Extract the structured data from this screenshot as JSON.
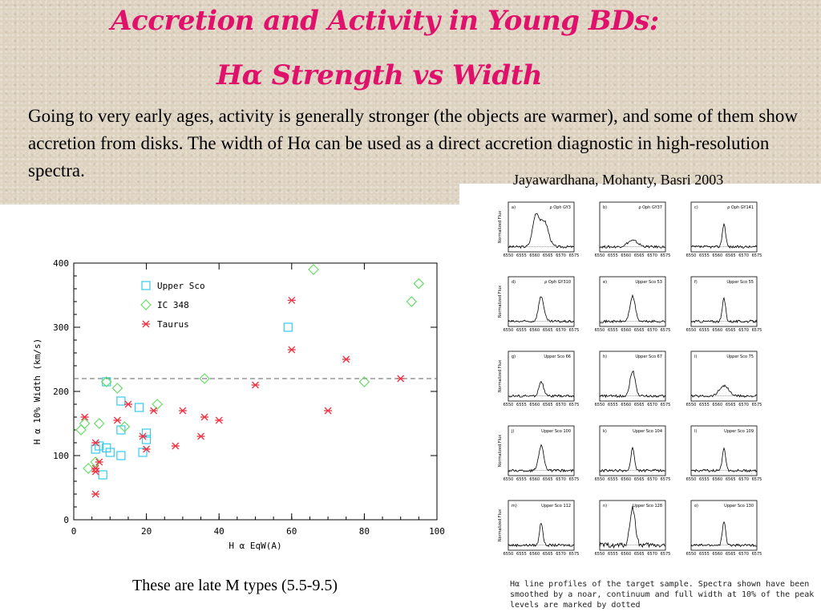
{
  "slide": {
    "title_line1": "Accretion and Activity in Young BDs:",
    "title_line2": "Hα Strength vs Width",
    "intro": "Going to very early ages, activity is generally stronger (the objects are warmer), and some of them show accretion from disks. The width of Hα can be used as a direct accretion diagnostic in high-resolution spectra.",
    "citation": "Jayawardhana, Mohanty, Basri 2003",
    "footer_note": "These are late M types (5.5-9.5)",
    "caption": "Hα line profiles of the target sample. Spectra shown have been smoothed by a noar, continuum and full width at 10% of the peak levels are marked by dotted"
  },
  "colors": {
    "title": "#e0116b",
    "upper_sco": "#33ccee",
    "ic348": "#66dd66",
    "taurus": "#ee3344",
    "threshold": "#666666"
  },
  "chart_data": [
    {
      "type": "scatter",
      "xlabel": "H α EqW(A)",
      "ylabel": "H α 10% Width (km/s)",
      "xlim": [
        0,
        100
      ],
      "ylim": [
        0,
        400
      ],
      "x_ticks": [
        0,
        20,
        40,
        60,
        80,
        100
      ],
      "y_ticks": [
        0,
        100,
        200,
        300,
        400
      ],
      "legend_position": "top-left",
      "threshold_line": 220,
      "series": [
        {
          "name": "Upper Sco",
          "marker": "square",
          "points": [
            [
              6,
              110
            ],
            [
              7,
              115
            ],
            [
              8,
              70
            ],
            [
              9,
              112
            ],
            [
              9,
              215
            ],
            [
              10,
              105
            ],
            [
              13,
              140
            ],
            [
              13,
              185
            ],
            [
              13,
              100
            ],
            [
              18,
              175
            ],
            [
              19,
              105
            ],
            [
              20,
              125
            ],
            [
              20,
              135
            ],
            [
              59,
              300
            ]
          ]
        },
        {
          "name": "IC 348",
          "marker": "diamond",
          "points": [
            [
              2,
              140
            ],
            [
              3,
              150
            ],
            [
              4,
              80
            ],
            [
              6,
              90
            ],
            [
              7,
              150
            ],
            [
              9,
              215
            ],
            [
              12,
              205
            ],
            [
              14,
              145
            ],
            [
              23,
              180
            ],
            [
              36,
              220
            ],
            [
              66,
              390
            ],
            [
              80,
              215
            ],
            [
              93,
              340
            ],
            [
              95,
              368
            ]
          ]
        },
        {
          "name": "Taurus",
          "marker": "asterisk",
          "points": [
            [
              3,
              160
            ],
            [
              6,
              120
            ],
            [
              6,
              75
            ],
            [
              6,
              80
            ],
            [
              6,
              40
            ],
            [
              7,
              90
            ],
            [
              12,
              155
            ],
            [
              15,
              180
            ],
            [
              19,
              130
            ],
            [
              20,
              110
            ],
            [
              22,
              170
            ],
            [
              28,
              115
            ],
            [
              30,
              170
            ],
            [
              35,
              130
            ],
            [
              36,
              160
            ],
            [
              40,
              155
            ],
            [
              50,
              210
            ],
            [
              60,
              342
            ],
            [
              60,
              265
            ],
            [
              70,
              170
            ],
            [
              75,
              250
            ],
            [
              90,
              220
            ]
          ]
        }
      ]
    },
    {
      "type": "line",
      "ylabel": "Normalized Flux",
      "panels": [
        {
          "tag": "a)",
          "label": "ρ Oph GY3",
          "xticks": [
            "6550",
            "6555",
            "6560",
            "6565",
            "6570",
            "6575"
          ],
          "shape": "broad-double"
        },
        {
          "tag": "b)",
          "label": "ρ Oph GY37",
          "xticks": [
            "6550",
            "6555",
            "6560",
            "6565",
            "6570",
            "6575"
          ],
          "shape": "weak"
        },
        {
          "tag": "c)",
          "label": "ρ Oph GY141",
          "xticks": [
            "6550",
            "6555",
            "6560",
            "6565",
            "6570",
            "6575"
          ],
          "shape": "narrow"
        },
        {
          "tag": "d)",
          "label": "ρ Oph GY310",
          "xticks": [
            "6550",
            "6555",
            "6560",
            "6565",
            "6570",
            "6575"
          ],
          "shape": "medium"
        },
        {
          "tag": "e)",
          "label": "Upper Sco 53",
          "xticks": [
            "6550",
            "6555",
            "6560",
            "6565",
            "6570",
            "6575"
          ],
          "shape": "medium"
        },
        {
          "tag": "f)",
          "label": "Upper Sco 55",
          "xticks": [
            "6550",
            "6555",
            "6560",
            "6565",
            "6570",
            "6575"
          ],
          "shape": "narrow"
        },
        {
          "tag": "g)",
          "label": "Upper Sco 66",
          "xticks": [
            "6550",
            "6555",
            "6560",
            "6565",
            "6570",
            "6575"
          ],
          "shape": "small"
        },
        {
          "tag": "h)",
          "label": "Upper Sco 67",
          "xticks": [
            "6550",
            "6555",
            "6560",
            "6565",
            "6570",
            "6575"
          ],
          "shape": "medium"
        },
        {
          "tag": "i)",
          "label": "Upper Sco 75",
          "xticks": [
            "6550",
            "6555",
            "6560",
            "6565",
            "6570",
            "6575"
          ],
          "shape": "broad-low"
        },
        {
          "tag": "j)",
          "label": "Upper Sco 100",
          "xticks": [
            "6550",
            "6555",
            "6560",
            "6565",
            "6570",
            "6575"
          ],
          "shape": "medium"
        },
        {
          "tag": "k)",
          "label": "Upper Sco 104",
          "xticks": [
            "6550",
            "6555",
            "6560",
            "6565",
            "6570",
            "6575"
          ],
          "shape": "narrow"
        },
        {
          "tag": "l)",
          "label": "Upper Sco 109",
          "xticks": [
            "6550",
            "6555",
            "6560",
            "6565",
            "6570",
            "6575"
          ],
          "shape": "narrow"
        },
        {
          "tag": "m)",
          "label": "Upper Sco 112",
          "xticks": [
            "6550",
            "6555",
            "6560",
            "6565",
            "6570",
            "6575"
          ],
          "shape": "narrow"
        },
        {
          "tag": "n)",
          "label": "Upper Sco 128",
          "xticks": [
            "6550",
            "6555",
            "6560",
            "6565",
            "6570",
            "6575"
          ],
          "shape": "tall-noisy"
        },
        {
          "tag": "o)",
          "label": "Upper Sco 130",
          "xticks": [
            "6550",
            "6555",
            "6560",
            "6565",
            "6570",
            "6575"
          ],
          "shape": "narrow"
        }
      ]
    }
  ]
}
